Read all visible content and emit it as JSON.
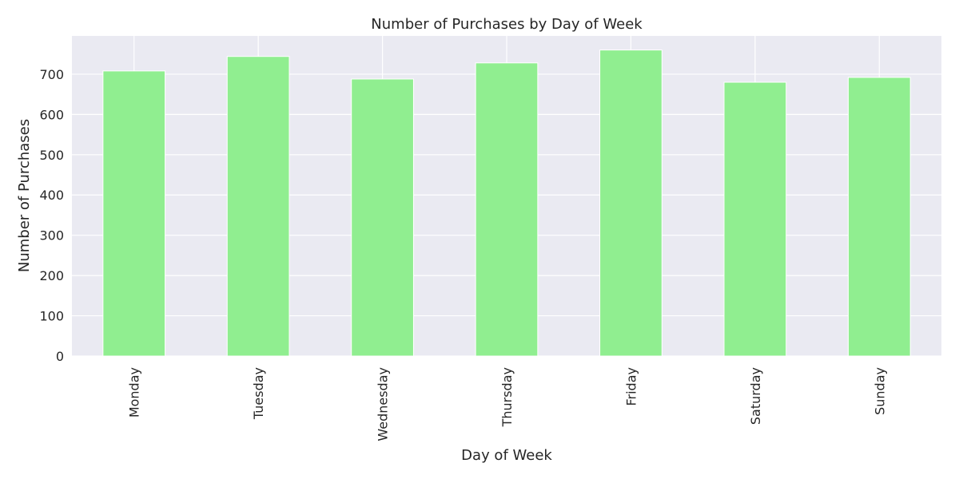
{
  "chart_data": {
    "type": "bar",
    "title": "Number of Purchases by Day of Week",
    "xlabel": "Day of Week",
    "ylabel": "Number of Purchases",
    "categories": [
      "Monday",
      "Tuesday",
      "Wednesday",
      "Thursday",
      "Friday",
      "Saturday",
      "Sunday"
    ],
    "values": [
      708,
      744,
      688,
      728,
      760,
      680,
      692
    ],
    "ylim": [
      0,
      795
    ],
    "yticks": [
      0,
      100,
      200,
      300,
      400,
      500,
      600,
      700
    ],
    "grid": true,
    "legend": "none",
    "colors": {
      "bar": "#90EE90",
      "plot_background": "#EAEAF2",
      "grid": "#FFFFFF",
      "text": "#262626"
    }
  }
}
